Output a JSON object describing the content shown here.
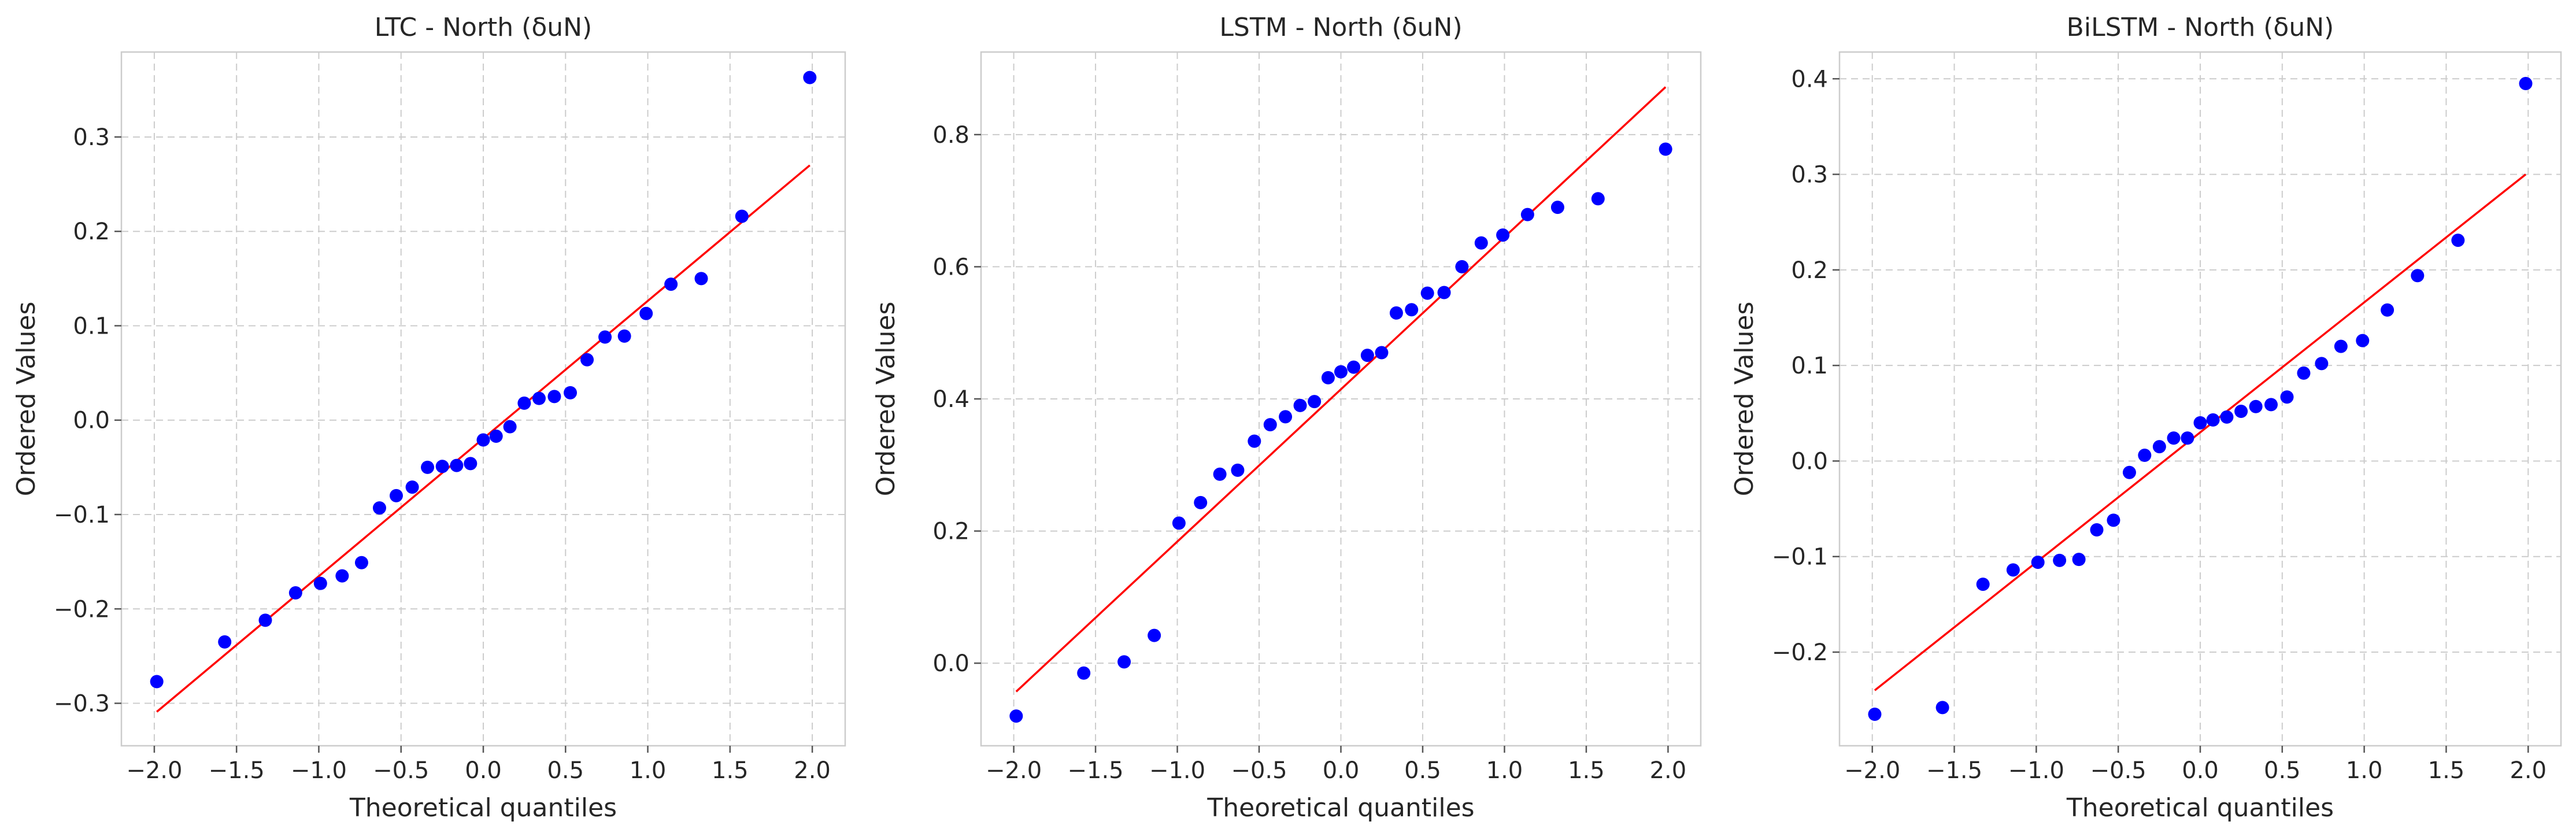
{
  "colors": {
    "points": "#0000ff",
    "fit_line": "#ff0000",
    "grid": "#cccccc",
    "frame": "#cccccc"
  },
  "chart_data": [
    {
      "type": "scatter",
      "title": "LTC - North (δuN)",
      "xlabel": "Theoretical quantiles",
      "ylabel": "Ordered Values",
      "xlim": [
        -2.2,
        2.2
      ],
      "ylim": [
        -0.345,
        0.39
      ],
      "xticks": [
        -2.0,
        -1.5,
        -1.0,
        -0.5,
        0.0,
        0.5,
        1.0,
        1.5,
        2.0
      ],
      "xtick_labels": [
        "−2.0",
        "−1.5",
        "−1.0",
        "−0.5",
        "0.0",
        "0.5",
        "1.0",
        "1.5",
        "2.0"
      ],
      "yticks": [
        -0.3,
        -0.2,
        -0.1,
        0.0,
        0.1,
        0.2,
        0.3
      ],
      "ytick_labels": [
        "−0.3",
        "−0.2",
        "−0.1",
        "0.0",
        "0.1",
        "0.2",
        "0.3"
      ],
      "grid": true,
      "x": [
        -1.985,
        -1.572,
        -1.325,
        -1.141,
        -0.99,
        -0.858,
        -0.74,
        -0.631,
        -0.529,
        -0.432,
        -0.339,
        -0.249,
        -0.162,
        -0.078,
        0.0,
        0.078,
        0.162,
        0.249,
        0.339,
        0.432,
        0.529,
        0.631,
        0.74,
        0.858,
        0.99,
        1.141,
        1.325,
        1.572,
        1.985
      ],
      "y": [
        -0.277,
        -0.235,
        -0.212,
        -0.183,
        -0.173,
        -0.165,
        -0.151,
        -0.093,
        -0.08,
        -0.071,
        -0.05,
        -0.049,
        -0.048,
        -0.046,
        -0.021,
        -0.017,
        -0.007,
        0.018,
        0.023,
        0.025,
        0.029,
        0.064,
        0.088,
        0.089,
        0.113,
        0.144,
        0.15,
        0.216,
        0.363
      ],
      "fit_line": {
        "x": [
          -1.985,
          1.985
        ],
        "y": [
          -0.309,
          0.27
        ]
      }
    },
    {
      "type": "scatter",
      "title": "LSTM - North (δuN)",
      "xlabel": "Theoretical quantiles",
      "ylabel": "Ordered Values",
      "xlim": [
        -2.2,
        2.2
      ],
      "ylim": [
        -0.125,
        0.925
      ],
      "xticks": [
        -2.0,
        -1.5,
        -1.0,
        -0.5,
        0.0,
        0.5,
        1.0,
        1.5,
        2.0
      ],
      "xtick_labels": [
        "−2.0",
        "−1.5",
        "−1.0",
        "−0.5",
        "0.0",
        "0.5",
        "1.0",
        "1.5",
        "2.0"
      ],
      "yticks": [
        0.0,
        0.2,
        0.4,
        0.6,
        0.8
      ],
      "ytick_labels": [
        "0.0",
        "0.2",
        "0.4",
        "0.6",
        "0.8"
      ],
      "grid": true,
      "x": [
        -1.985,
        -1.572,
        -1.325,
        -1.141,
        -0.99,
        -0.858,
        -0.74,
        -0.631,
        -0.529,
        -0.432,
        -0.339,
        -0.249,
        -0.162,
        -0.078,
        0.0,
        0.078,
        0.162,
        0.249,
        0.339,
        0.432,
        0.529,
        0.631,
        0.74,
        0.858,
        0.99,
        1.141,
        1.325,
        1.572,
        1.985
      ],
      "y": [
        -0.08,
        -0.015,
        0.002,
        0.042,
        0.212,
        0.243,
        0.286,
        0.292,
        0.336,
        0.361,
        0.373,
        0.39,
        0.396,
        0.432,
        0.441,
        0.448,
        0.466,
        0.47,
        0.53,
        0.535,
        0.56,
        0.561,
        0.6,
        0.636,
        0.648,
        0.679,
        0.69,
        0.703,
        0.778
      ],
      "fit_line": {
        "x": [
          -1.985,
          1.985
        ],
        "y": [
          -0.043,
          0.872
        ]
      }
    },
    {
      "type": "scatter",
      "title": "BiLSTM - North (δuN)",
      "xlabel": "Theoretical quantiles",
      "ylabel": "Ordered Values",
      "xlim": [
        -2.2,
        2.2
      ],
      "ylim": [
        -0.298,
        0.428
      ],
      "xticks": [
        -2.0,
        -1.5,
        -1.0,
        -0.5,
        0.0,
        0.5,
        1.0,
        1.5,
        2.0
      ],
      "xtick_labels": [
        "−2.0",
        "−1.5",
        "−1.0",
        "−0.5",
        "0.0",
        "0.5",
        "1.0",
        "1.5",
        "2.0"
      ],
      "yticks": [
        -0.2,
        -0.1,
        0.0,
        0.1,
        0.2,
        0.3,
        0.4
      ],
      "ytick_labels": [
        "−0.2",
        "−0.1",
        "0.0",
        "0.1",
        "0.2",
        "0.3",
        "0.4"
      ],
      "grid": true,
      "x": [
        -1.985,
        -1.572,
        -1.325,
        -1.141,
        -0.99,
        -0.858,
        -0.74,
        -0.631,
        -0.529,
        -0.432,
        -0.339,
        -0.249,
        -0.162,
        -0.078,
        0.0,
        0.078,
        0.162,
        0.249,
        0.339,
        0.432,
        0.529,
        0.631,
        0.74,
        0.858,
        0.99,
        1.141,
        1.325,
        1.572,
        1.985
      ],
      "y": [
        -0.265,
        -0.258,
        -0.129,
        -0.114,
        -0.106,
        -0.104,
        -0.103,
        -0.072,
        -0.062,
        -0.012,
        0.006,
        0.015,
        0.024,
        0.024,
        0.04,
        0.043,
        0.046,
        0.052,
        0.057,
        0.059,
        0.067,
        0.092,
        0.102,
        0.12,
        0.126,
        0.158,
        0.194,
        0.231,
        0.395
      ],
      "fit_line": {
        "x": [
          -1.985,
          1.985
        ],
        "y": [
          -0.24,
          0.3
        ]
      }
    }
  ]
}
